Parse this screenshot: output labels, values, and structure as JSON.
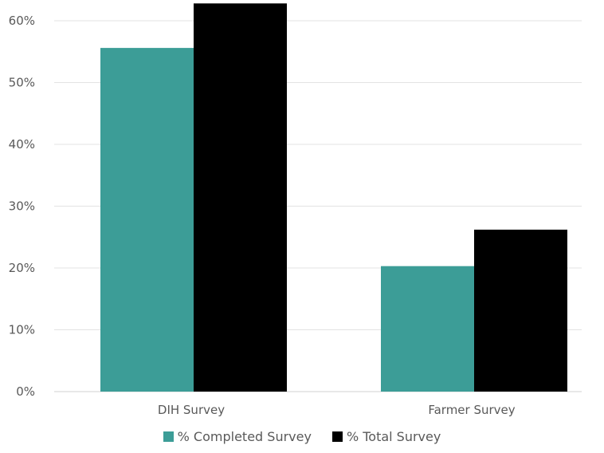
{
  "chart_data": {
    "type": "bar",
    "categories": [
      "DIH Survey",
      "Farmer Survey"
    ],
    "series": [
      {
        "name": "% Completed Survey",
        "values": [
          55.6,
          20.3
        ],
        "color": "#3c9d97"
      },
      {
        "name": "% Total Survey",
        "values": [
          62.8,
          26.2
        ],
        "color": "#000000"
      }
    ],
    "y_ticks": [
      "0%",
      "10%",
      "20%",
      "30%",
      "40%",
      "50%",
      "60%"
    ],
    "ylim": [
      0,
      64
    ],
    "grid": true,
    "legend_position": "bottom"
  }
}
